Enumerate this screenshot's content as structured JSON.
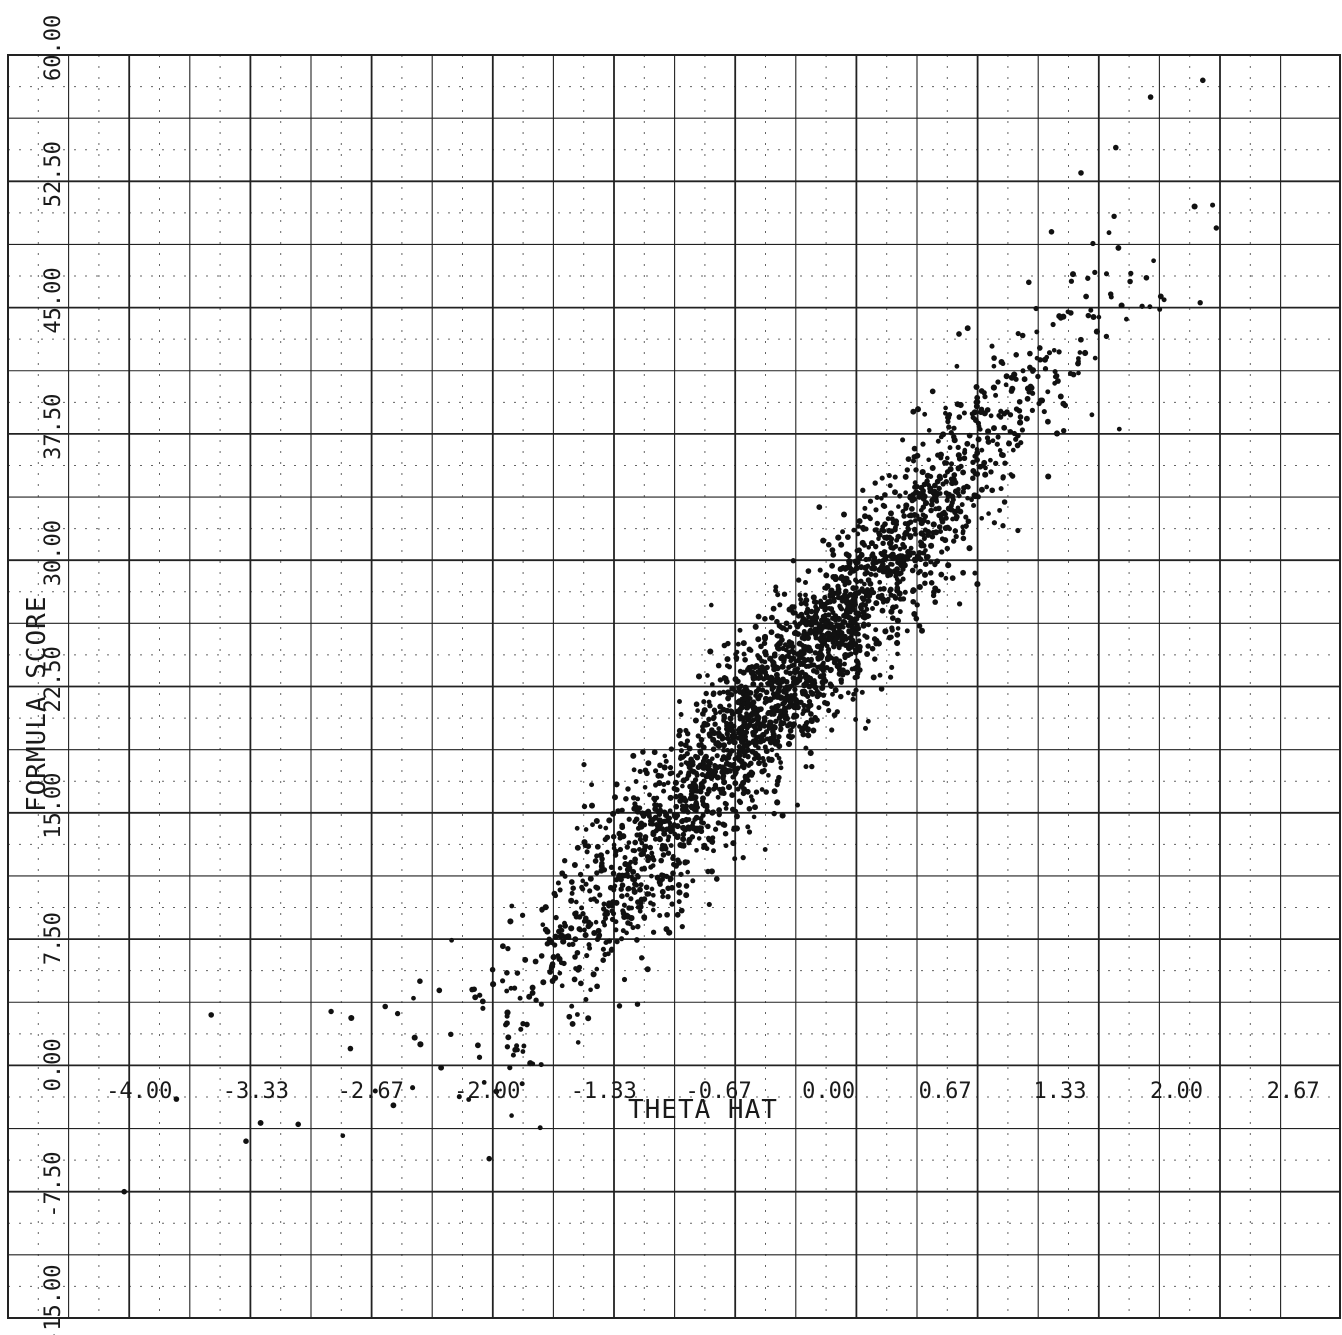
{
  "chart_data": {
    "type": "scatter",
    "title": "",
    "xlabel": "THETA HAT",
    "ylabel": "FORMULA SCORE",
    "xlim": [
      -4.3,
      3.0
    ],
    "ylim": [
      -15.0,
      60.0
    ],
    "x_ticks": [
      "-4.00",
      "-3.33",
      "-2.67",
      "-2.00",
      "-1.33",
      "-0.67",
      "0.00",
      "0.67",
      "1.33",
      "2.00",
      "2.67"
    ],
    "y_ticks": [
      "-15.00",
      "-7.50",
      "0.00",
      "7.50",
      "15.00",
      "22.50",
      "30.00",
      "37.50",
      "45.00",
      "52.50",
      "60.00"
    ],
    "grid": true,
    "legend": "none",
    "trend": {
      "slope": 12.0,
      "intercept": 25.0
    },
    "representative_points": [
      [
        -4.0,
        -7.5
      ],
      [
        -3.7,
        -2.0
      ],
      [
        -3.5,
        3.0
      ],
      [
        -3.3,
        -4.5
      ],
      [
        -3.0,
        -3.5
      ],
      [
        -2.7,
        1.0
      ],
      [
        -2.5,
        3.5
      ],
      [
        -2.3,
        5.0
      ],
      [
        -2.0,
        4.5
      ],
      [
        -1.8,
        5.5
      ],
      [
        -1.6,
        6.5
      ],
      [
        -1.33,
        8.5
      ],
      [
        -1.1,
        10.5
      ],
      [
        -0.9,
        12.5
      ],
      [
        -0.67,
        15.5
      ],
      [
        -0.45,
        18.0
      ],
      [
        -0.2,
        21.0
      ],
      [
        0.0,
        24.5
      ],
      [
        0.2,
        27.5
      ],
      [
        0.4,
        31.0
      ],
      [
        0.6,
        34.5
      ],
      [
        0.8,
        38.5
      ],
      [
        1.0,
        42.0
      ],
      [
        1.2,
        46.5
      ],
      [
        1.33,
        49.5
      ],
      [
        1.5,
        53.0
      ],
      [
        1.7,
        54.5
      ],
      [
        1.9,
        57.5
      ],
      [
        2.2,
        58.5
      ]
    ],
    "point_color": "#111111",
    "grid_color": "#222222"
  }
}
